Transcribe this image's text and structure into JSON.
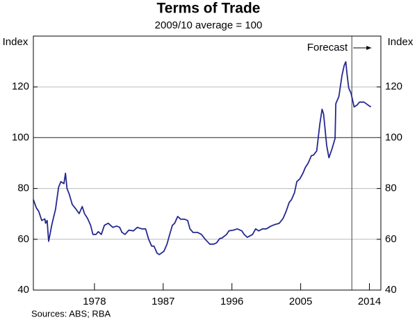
{
  "chart_data": {
    "type": "line",
    "title": "Terms of Trade",
    "subtitle": "2009/10 average = 100",
    "y_label": "Index",
    "y2_label": "Index",
    "source": "Sources: ABS; RBA",
    "annotations": [
      {
        "text": "Forecast",
        "x": 2011.7
      }
    ],
    "reference_line": 100,
    "xlim": [
      1970,
      2015.5
    ],
    "xticks": [
      1978,
      1987,
      1996,
      2005,
      2014
    ],
    "ylim": [
      40,
      140
    ],
    "yticks": [
      40,
      60,
      80,
      100,
      120
    ],
    "y2lim": [
      40,
      140
    ],
    "y2ticks": [
      40,
      60,
      80,
      100,
      120
    ],
    "grid": true,
    "x": [
      1970,
      1970.4,
      1970.7,
      1971.1,
      1971.5,
      1971.6,
      1971.8,
      1972,
      1972.4,
      1972.5,
      1972.9,
      1973.3,
      1973.6,
      1974,
      1974.2,
      1974.4,
      1974.7,
      1975.1,
      1975.6,
      1976,
      1976.4,
      1976.7,
      1977.1,
      1977.5,
      1977.8,
      1978.2,
      1978.5,
      1978.9,
      1979.3,
      1979.8,
      1980.4,
      1980.9,
      1981.3,
      1981.6,
      1982,
      1982.5,
      1983.1,
      1983.6,
      1984.2,
      1984.7,
      1985.1,
      1985.5,
      1985.8,
      1986.2,
      1986.5,
      1987.1,
      1987.5,
      1987.8,
      1988.2,
      1988.5,
      1988.9,
      1989.3,
      1989.8,
      1990.2,
      1990.5,
      1990.9,
      1991.5,
      1992,
      1992.5,
      1993.1,
      1993.6,
      1994,
      1994.4,
      1994.7,
      1995.3,
      1995.6,
      1996.2,
      1996.7,
      1997.3,
      1997.6,
      1998,
      1998.4,
      1998.7,
      1999.1,
      1999.5,
      2000,
      2000.5,
      2001.1,
      2001.6,
      2002.2,
      2002.7,
      2003.1,
      2003.5,
      2003.8,
      2004.2,
      2004.5,
      2004.9,
      2005.3,
      2005.6,
      2006,
      2006.4,
      2006.7,
      2007.1,
      2007.5,
      2007.8,
      2008,
      2008.4,
      2008.7,
      2009.1,
      2009.5,
      2009.6,
      2010,
      2010.4,
      2010.7,
      2010.9,
      2011.1,
      2011.3,
      2011.6,
      2012,
      2012.4,
      2012.7,
      2013.3,
      2013.8,
      2014.2
    ],
    "series": [
      {
        "name": "Terms of Trade",
        "color": "#24288f",
        "values": [
          75.6,
          72.3,
          71,
          67.4,
          68,
          66.3,
          67.4,
          59.2,
          65.5,
          66.8,
          71.8,
          80.5,
          82.7,
          81.9,
          86,
          80,
          77.8,
          73.7,
          71.8,
          70.1,
          72.9,
          70.1,
          68.2,
          65.5,
          61.9,
          61.9,
          63,
          61.9,
          65.5,
          66.3,
          64.7,
          65.2,
          64.7,
          62.7,
          61.9,
          63.6,
          63.3,
          64.7,
          64.1,
          64.1,
          60,
          57.3,
          57.3,
          54.5,
          54,
          55.3,
          58.1,
          61.4,
          65.5,
          66.3,
          69,
          67.9,
          67.9,
          67.4,
          64.1,
          62.7,
          62.7,
          61.9,
          60,
          58.1,
          58.1,
          58.6,
          60.3,
          60.5,
          61.9,
          63.3,
          63.6,
          64.1,
          63.3,
          61.9,
          60.8,
          61.4,
          61.9,
          64.1,
          63.3,
          64.1,
          64.1,
          65.2,
          65.8,
          66.3,
          68.2,
          71,
          74.5,
          75.6,
          78.4,
          82.7,
          83.8,
          86,
          88.2,
          90.1,
          92.9,
          93.2,
          94.8,
          105.2,
          111.2,
          109.3,
          97,
          92.1,
          95.6,
          99.7,
          113.4,
          116.2,
          124.4,
          128.5,
          129.9,
          124.4,
          119.5,
          117.5,
          112.1,
          112.9,
          114,
          114,
          112.9,
          112.1
        ]
      }
    ]
  }
}
